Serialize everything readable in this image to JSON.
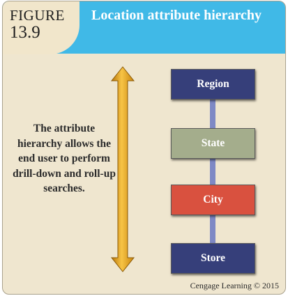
{
  "figure": {
    "label": "FIGURE",
    "number": "13.9",
    "title": "Location attribute hierarchy"
  },
  "description": "The attribute hierarchy allows the end user to perform drill-down and roll-up searches.",
  "hierarchy": {
    "levels": [
      {
        "label": "Region",
        "color": "#363f7a"
      },
      {
        "label": "State",
        "color": "#a4ad8c"
      },
      {
        "label": "City",
        "color": "#d9513f"
      },
      {
        "label": "Store",
        "color": "#363f7a"
      }
    ],
    "connector_color": "#7e89c5"
  },
  "arrow": {
    "direction": "bidirectional-vertical",
    "color": "#e9a51f"
  },
  "colors": {
    "header": "#40b9e7",
    "background": "#efe6cf"
  },
  "credit": "Cengage Learning © 2015"
}
